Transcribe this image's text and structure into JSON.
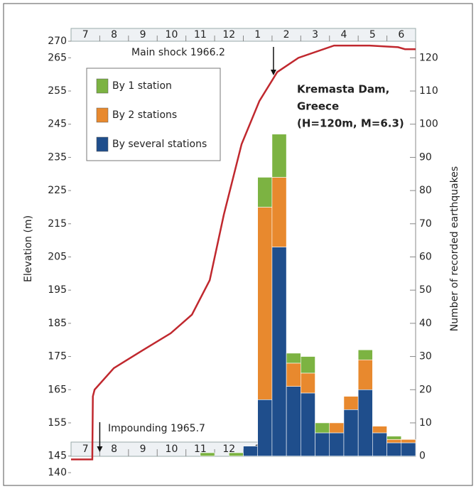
{
  "chart_data": {
    "type": "bar",
    "title": "Kremasta Dam, Greece (H=120m, M=6.3)",
    "y_label": "Elevation (m)",
    "y2_label": "Number of recorded earthquakes",
    "categories": [
      "7",
      "8",
      "9",
      "10",
      "11",
      "12",
      "1",
      "2",
      "3",
      "4",
      "5",
      "6"
    ],
    "xlim": [
      0,
      12
    ],
    "ylim": [
      140,
      270
    ],
    "yticks": [
      140,
      145,
      155,
      165,
      175,
      185,
      195,
      205,
      215,
      225,
      235,
      245,
      255,
      265,
      270
    ],
    "y2lim": [
      -5,
      125
    ],
    "y2ticks": [
      0,
      10,
      20,
      30,
      40,
      50,
      60,
      70,
      80,
      90,
      100,
      110,
      120
    ],
    "x": [
      4.75,
      5.75,
      6.25,
      6.75,
      7.25,
      7.75,
      8.25,
      8.75,
      9.25,
      9.75,
      10.25,
      10.75,
      11.25,
      11.75
    ],
    "series": [
      {
        "name": "By several stations",
        "color": "#1f4e8c",
        "axis": "y2",
        "values": [
          0,
          0,
          3,
          17,
          63,
          21,
          19,
          7,
          7,
          14,
          20,
          7,
          4,
          4
        ]
      },
      {
        "name": "By 2 stations",
        "color": "#e8892e",
        "axis": "y2",
        "values": [
          0,
          0,
          0,
          58,
          21,
          7,
          6,
          0,
          3,
          4,
          9,
          2,
          1,
          1
        ]
      },
      {
        "name": "By 1 station",
        "color": "#7cb342",
        "axis": "y2",
        "values": [
          1,
          1,
          0,
          9,
          13,
          3,
          5,
          3,
          0,
          0,
          3,
          0,
          1,
          0
        ]
      }
    ],
    "elevation": {
      "color": "#c0282e",
      "x": [
        0,
        0.74,
        0.76,
        0.82,
        1.49,
        2.48,
        3.47,
        4.21,
        4.83,
        5.32,
        5.94,
        6.56,
        7.18,
        7.92,
        9.16,
        10.4,
        11.39,
        11.63,
        12
      ],
      "values": [
        144,
        144,
        163,
        165,
        171.5,
        176.8,
        182,
        187.6,
        198,
        217.7,
        239,
        252,
        260.7,
        265,
        268.7,
        268.7,
        268.2,
        267.6,
        267.6
      ]
    },
    "annotations": [
      {
        "text": "Main shock 1966.2",
        "x": 7.05
      },
      {
        "text": "Impounding 1965.7",
        "x": 1.0
      }
    ]
  }
}
